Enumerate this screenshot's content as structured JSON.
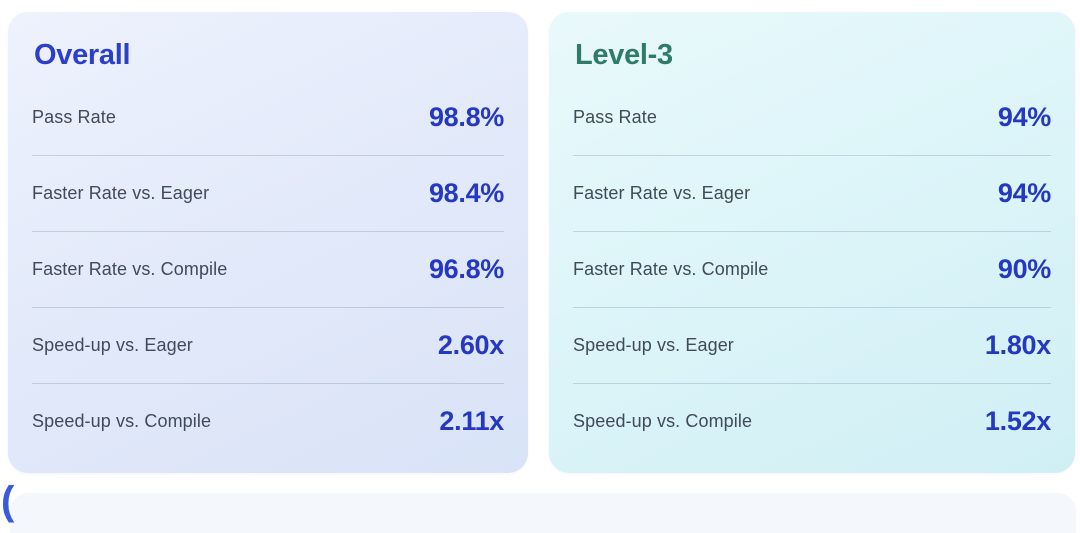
{
  "colors": {
    "value_blue": "#2438c2",
    "label_gray": "#414a58",
    "overall_title": "#2b40ca",
    "level3_title": "#2e7c67",
    "overall_card_bg_start": "#eef2fd",
    "overall_card_bg_end": "#d9e3f7",
    "level3_card_bg_start": "#e9f9fb",
    "level3_card_bg_end": "#d0eff5",
    "bottom_section_bg": "#f4f7fb",
    "paren_blue": "#3a5bd9"
  },
  "cards": [
    {
      "title": "Overall",
      "title_color": "#2b40ca",
      "rows": [
        {
          "label": "Pass Rate",
          "value": "98.8%"
        },
        {
          "label": "Faster Rate vs. Eager",
          "value": "98.4%"
        },
        {
          "label": "Faster Rate vs. Compile",
          "value": "96.8%"
        },
        {
          "label": "Speed-up vs. Eager",
          "value": "2.60x"
        },
        {
          "label": "Speed-up vs. Compile",
          "value": "2.11x"
        }
      ]
    },
    {
      "title": "Level-3",
      "title_color": "#2e7c67",
      "rows": [
        {
          "label": "Pass Rate",
          "value": "94%"
        },
        {
          "label": "Faster Rate vs. Eager",
          "value": "94%"
        },
        {
          "label": "Faster Rate vs. Compile",
          "value": "90%"
        },
        {
          "label": "Speed-up vs. Eager",
          "value": "1.80x"
        },
        {
          "label": "Speed-up vs. Compile",
          "value": "1.52x"
        }
      ]
    }
  ],
  "bottom_section": {
    "paren_text": "("
  }
}
